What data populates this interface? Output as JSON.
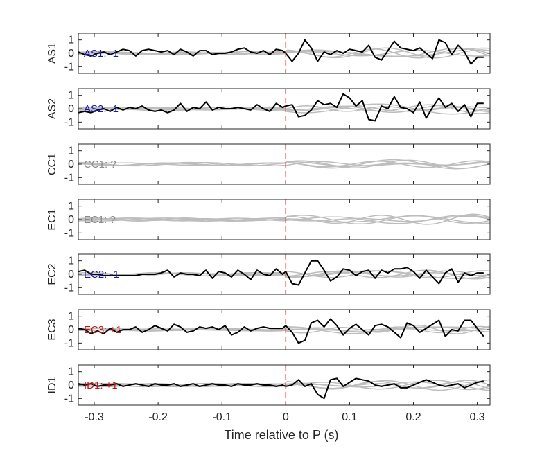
{
  "chart_data": {
    "type": "line",
    "xlabel": "Time relative to P (s)",
    "xlim": [
      -0.325,
      0.32
    ],
    "xticks": [
      -0.3,
      -0.2,
      -0.1,
      0,
      0.1,
      0.2,
      0.3
    ],
    "xtick_labels": [
      "-0.3",
      "-0.2",
      "-0.1",
      "0",
      "0.1",
      "0.2",
      "0.3"
    ],
    "ylim": [
      -1.5,
      1.5
    ],
    "yticks": [
      1,
      0,
      -1
    ],
    "marker_line": {
      "x": 0,
      "color": "#e0302a",
      "style": "dashed"
    },
    "colors": {
      "trace": "#000000",
      "background": "#bdbdbd",
      "negative": "#1a1aa6",
      "positive": "#c01818",
      "unknown": "#8c8c8c"
    },
    "panels": [
      {
        "station": "AS1",
        "annotation": "AS1: -1",
        "polarity": "negative",
        "trace_x": [
          -0.325,
          -0.315,
          -0.305,
          -0.295,
          -0.285,
          -0.275,
          -0.265,
          -0.255,
          -0.245,
          -0.235,
          -0.225,
          -0.215,
          -0.205,
          -0.195,
          -0.185,
          -0.175,
          -0.165,
          -0.155,
          -0.145,
          -0.135,
          -0.125,
          -0.115,
          -0.105,
          -0.095,
          -0.085,
          -0.075,
          -0.065,
          -0.055,
          -0.045,
          -0.035,
          -0.025,
          -0.015,
          -0.005,
          0.0,
          0.01,
          0.02,
          0.03,
          0.04,
          0.05,
          0.06,
          0.07,
          0.08,
          0.09,
          0.1,
          0.11,
          0.12,
          0.13,
          0.14,
          0.15,
          0.16,
          0.17,
          0.18,
          0.19,
          0.2,
          0.21,
          0.22,
          0.23,
          0.24,
          0.25,
          0.26,
          0.27,
          0.28,
          0.29,
          0.3,
          0.31
        ],
        "trace_y": [
          0.1,
          -0.1,
          -0.2,
          0.0,
          0.1,
          -0.1,
          0.1,
          0.3,
          0.2,
          -0.2,
          0.2,
          0.3,
          0.2,
          0.1,
          0.2,
          -0.1,
          0.3,
          0.1,
          -0.2,
          0.2,
          0.2,
          -0.1,
          0.0,
          0.0,
          0.1,
          0.3,
          0.4,
          0.1,
          0.0,
          0.2,
          -0.1,
          0.3,
          0.2,
          0.0,
          -0.6,
          0.0,
          1.0,
          0.4,
          -0.6,
          0.1,
          -0.1,
          0.2,
          0.0,
          0.3,
          0.2,
          0.1,
          0.6,
          -0.3,
          -0.5,
          0.2,
          0.9,
          0.4,
          0.3,
          0.2,
          0.4,
          0.0,
          -0.4,
          1.0,
          0.8,
          -0.1,
          0.6,
          0.1,
          -0.8,
          -0.3,
          -0.3
        ]
      },
      {
        "station": "AS2",
        "annotation": "AS2: -1",
        "polarity": "negative",
        "trace_x": [
          -0.325,
          -0.315,
          -0.305,
          -0.295,
          -0.285,
          -0.275,
          -0.265,
          -0.255,
          -0.245,
          -0.235,
          -0.225,
          -0.215,
          -0.205,
          -0.195,
          -0.185,
          -0.175,
          -0.165,
          -0.155,
          -0.145,
          -0.135,
          -0.125,
          -0.115,
          -0.105,
          -0.095,
          -0.085,
          -0.075,
          -0.065,
          -0.055,
          -0.045,
          -0.035,
          -0.025,
          -0.015,
          -0.005,
          0.0,
          0.01,
          0.02,
          0.03,
          0.04,
          0.05,
          0.06,
          0.07,
          0.08,
          0.09,
          0.1,
          0.11,
          0.12,
          0.13,
          0.14,
          0.15,
          0.16,
          0.17,
          0.18,
          0.19,
          0.2,
          0.21,
          0.22,
          0.23,
          0.24,
          0.25,
          0.26,
          0.27,
          0.28,
          0.29,
          0.3,
          0.31
        ],
        "trace_y": [
          -0.3,
          -0.2,
          -0.3,
          -0.1,
          0.0,
          -0.2,
          0.1,
          -0.1,
          0.1,
          0.0,
          0.2,
          -0.1,
          -0.2,
          -0.1,
          -0.3,
          -0.1,
          0.4,
          -0.2,
          0.1,
          0.0,
          0.5,
          -0.1,
          0.1,
          0.0,
          0.0,
          0.1,
          0.0,
          -0.1,
          0.3,
          0.0,
          -0.2,
          0.4,
          0.1,
          0.2,
          0.3,
          -0.6,
          -0.5,
          -0.1,
          0.6,
          0.3,
          0.4,
          0.1,
          1.1,
          0.8,
          0.2,
          0.6,
          -0.8,
          -0.9,
          0.2,
          0.0,
          0.9,
          0.1,
          0.0,
          -0.3,
          0.5,
          -0.7,
          0.1,
          0.8,
          0.1,
          0.4,
          -0.2,
          0.3,
          -0.6,
          0.4,
          0.4
        ]
      },
      {
        "station": "CC1",
        "annotation": "CC1: ?",
        "polarity": "unknown",
        "trace_x": [],
        "trace_y": []
      },
      {
        "station": "EC1",
        "annotation": "EC1: ?",
        "polarity": "unknown",
        "trace_x": [],
        "trace_y": []
      },
      {
        "station": "EC2",
        "annotation": "EC2: -1",
        "polarity": "negative",
        "trace_x": [
          -0.325,
          -0.315,
          -0.305,
          -0.295,
          -0.285,
          -0.275,
          -0.265,
          -0.255,
          -0.245,
          -0.235,
          -0.225,
          -0.215,
          -0.205,
          -0.195,
          -0.185,
          -0.175,
          -0.165,
          -0.155,
          -0.145,
          -0.135,
          -0.125,
          -0.115,
          -0.105,
          -0.095,
          -0.085,
          -0.075,
          -0.065,
          -0.055,
          -0.045,
          -0.035,
          -0.025,
          -0.015,
          -0.005,
          0.0,
          0.01,
          0.02,
          0.03,
          0.04,
          0.05,
          0.06,
          0.07,
          0.08,
          0.09,
          0.1,
          0.11,
          0.12,
          0.13,
          0.14,
          0.15,
          0.16,
          0.17,
          0.18,
          0.19,
          0.2,
          0.21,
          0.22,
          0.23,
          0.24,
          0.25,
          0.26,
          0.27,
          0.28,
          0.29,
          0.3,
          0.31
        ],
        "trace_y": [
          0.2,
          0.3,
          0.0,
          0.0,
          -0.1,
          -0.1,
          -0.1,
          -0.1,
          -0.1,
          -0.1,
          0.0,
          0.0,
          0.0,
          0.1,
          0.3,
          -0.2,
          0.1,
          0.0,
          0.0,
          -0.1,
          0.3,
          -0.3,
          0.2,
          0.1,
          -0.2,
          0.3,
          0.0,
          -0.4,
          0.3,
          0.0,
          -0.1,
          0.4,
          0.0,
          0.2,
          -0.7,
          -0.8,
          0.1,
          1.0,
          1.0,
          0.3,
          -0.5,
          -0.2,
          0.4,
          0.3,
          -0.1,
          0.2,
          0.3,
          -0.3,
          0.3,
          0.1,
          0.4,
          0.4,
          0.5,
          0.2,
          -0.3,
          0.3,
          -0.2,
          -0.7,
          0.1,
          0.4,
          -0.6,
          0.1,
          -0.1,
          0.1,
          0.1
        ]
      },
      {
        "station": "EC3",
        "annotation": "EC3: +1",
        "polarity": "positive",
        "trace_x": [
          -0.325,
          -0.315,
          -0.305,
          -0.295,
          -0.285,
          -0.275,
          -0.265,
          -0.255,
          -0.245,
          -0.235,
          -0.225,
          -0.215,
          -0.205,
          -0.195,
          -0.185,
          -0.175,
          -0.165,
          -0.155,
          -0.145,
          -0.135,
          -0.125,
          -0.115,
          -0.105,
          -0.095,
          -0.085,
          -0.075,
          -0.065,
          -0.055,
          -0.045,
          -0.035,
          -0.025,
          -0.015,
          -0.005,
          0.0,
          0.01,
          0.02,
          0.03,
          0.04,
          0.05,
          0.06,
          0.07,
          0.08,
          0.09,
          0.1,
          0.11,
          0.12,
          0.13,
          0.14,
          0.15,
          0.16,
          0.17,
          0.18,
          0.19,
          0.2,
          0.21,
          0.22,
          0.23,
          0.24,
          0.25,
          0.26,
          0.27,
          0.28,
          0.29,
          0.3,
          0.31
        ],
        "trace_y": [
          0.1,
          0.0,
          -0.3,
          -0.1,
          -0.3,
          0.1,
          -0.2,
          0.0,
          0.0,
          0.2,
          -0.2,
          0.0,
          0.3,
          0.1,
          -0.1,
          0.4,
          0.2,
          -0.2,
          -0.1,
          0.2,
          0.1,
          0.2,
          0.0,
          0.3,
          -0.4,
          -0.2,
          0.2,
          -0.1,
          0.1,
          0.2,
          0.1,
          0.1,
          0.1,
          0.3,
          -0.2,
          -1.0,
          -0.8,
          0.5,
          0.7,
          0.2,
          0.8,
          0.3,
          -0.4,
          0.1,
          0.4,
          0.0,
          -0.4,
          0.3,
          0.4,
          0.2,
          -0.2,
          -0.6,
          0.5,
          0.3,
          -0.2,
          0.1,
          0.4,
          0.7,
          -0.5,
          0.0,
          -0.1,
          0.7,
          0.7,
          0.1,
          -0.5
        ]
      },
      {
        "station": "ID1",
        "annotation": "ID1: +1",
        "polarity": "positive",
        "trace_x": [
          -0.325,
          -0.315,
          -0.305,
          -0.295,
          -0.285,
          -0.275,
          -0.265,
          -0.255,
          -0.245,
          -0.235,
          -0.225,
          -0.215,
          -0.205,
          -0.195,
          -0.185,
          -0.175,
          -0.165,
          -0.155,
          -0.145,
          -0.135,
          -0.125,
          -0.115,
          -0.105,
          -0.095,
          -0.085,
          -0.075,
          -0.065,
          -0.055,
          -0.045,
          -0.035,
          -0.025,
          -0.015,
          -0.005,
          0.0,
          0.01,
          0.02,
          0.03,
          0.04,
          0.05,
          0.06,
          0.07,
          0.08,
          0.09,
          0.1,
          0.11,
          0.12,
          0.13,
          0.14,
          0.15,
          0.16,
          0.17,
          0.18,
          0.19,
          0.2,
          0.21,
          0.22,
          0.23,
          0.24,
          0.25,
          0.26,
          0.27,
          0.28,
          0.29,
          0.3,
          0.31
        ],
        "trace_y": [
          0.1,
          0.0,
          0.1,
          -0.1,
          0.0,
          0.0,
          0.1,
          -0.1,
          0.0,
          0.1,
          0.0,
          -0.1,
          0.1,
          0.0,
          0.0,
          0.1,
          -0.1,
          0.0,
          0.1,
          -0.1,
          0.0,
          0.1,
          0.0,
          0.0,
          -0.1,
          0.1,
          0.0,
          0.0,
          0.1,
          0.0,
          0.0,
          -0.1,
          0.0,
          -0.1,
          0.0,
          0.4,
          -0.1,
          0.1,
          -0.7,
          -1.0,
          0.4,
          0.5,
          -0.1,
          0.2,
          0.5,
          0.4,
          0.3,
          0.0,
          -0.1,
          0.0,
          0.1,
          -0.2,
          -0.2,
          0.0,
          0.2,
          0.4,
          0.2,
          0.0,
          -0.1,
          0.0,
          0.1,
          -0.2,
          0.0,
          0.2,
          0.3
        ]
      }
    ]
  }
}
